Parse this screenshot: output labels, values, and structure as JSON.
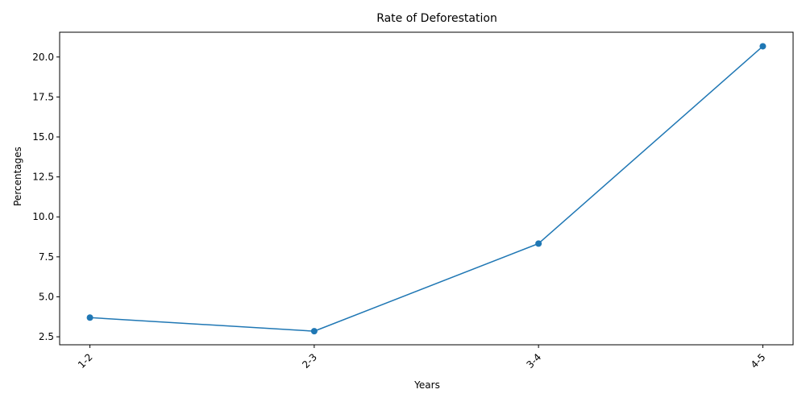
{
  "chart_data": {
    "type": "line",
    "title": "Rate of Deforestation",
    "xlabel": "Years",
    "ylabel": "Percentages",
    "categories": [
      "1-2",
      "2-3",
      "3-4",
      "4-5"
    ],
    "series": [
      {
        "values": [
          3.7,
          2.85,
          8.33,
          20.67
        ],
        "color": "#1f77b4",
        "marker": "circle"
      }
    ],
    "ylim": [
      2.0,
      21.55
    ],
    "yticks": [
      "2.5",
      "5.0",
      "7.5",
      "10.0",
      "12.5",
      "15.0",
      "17.5",
      "20.0"
    ],
    "x_tick_rotation_deg": 45,
    "grid": false,
    "legend": "none"
  }
}
